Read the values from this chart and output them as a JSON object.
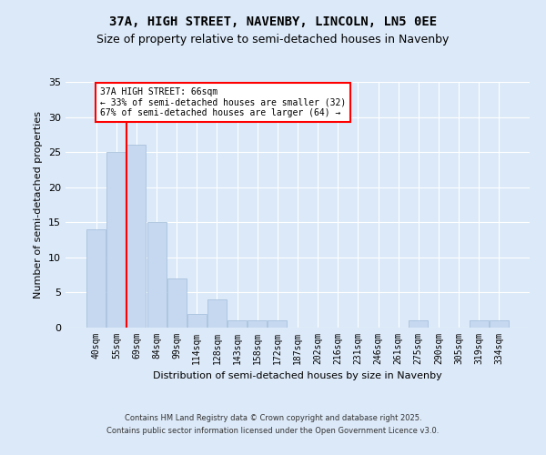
{
  "title": "37A, HIGH STREET, NAVENBY, LINCOLN, LN5 0EE",
  "subtitle": "Size of property relative to semi-detached houses in Navenby",
  "xlabel": "Distribution of semi-detached houses by size in Navenby",
  "ylabel": "Number of semi-detached properties",
  "categories": [
    "40sqm",
    "55sqm",
    "69sqm",
    "84sqm",
    "99sqm",
    "114sqm",
    "128sqm",
    "143sqm",
    "158sqm",
    "172sqm",
    "187sqm",
    "202sqm",
    "216sqm",
    "231sqm",
    "246sqm",
    "261sqm",
    "275sqm",
    "290sqm",
    "305sqm",
    "319sqm",
    "334sqm"
  ],
  "values": [
    14,
    25,
    26,
    15,
    7,
    2,
    4,
    1,
    1,
    1,
    0,
    0,
    0,
    0,
    0,
    0,
    1,
    0,
    0,
    1,
    1
  ],
  "bar_color": "#c5d8f0",
  "bar_edge_color": "#a0bcd8",
  "red_line_x": 1.5,
  "annotation_title": "37A HIGH STREET: 66sqm",
  "annotation_line1": "← 33% of semi-detached houses are smaller (32)",
  "annotation_line2": "67% of semi-detached houses are larger (64) →",
  "ylim": [
    0,
    35
  ],
  "yticks": [
    0,
    5,
    10,
    15,
    20,
    25,
    30,
    35
  ],
  "footer1": "Contains HM Land Registry data © Crown copyright and database right 2025.",
  "footer2": "Contains public sector information licensed under the Open Government Licence v3.0.",
  "bg_color": "#dce9f8",
  "plot_bg_color": "#dce9f8",
  "grid_color": "#ffffff",
  "title_fontsize": 10,
  "subtitle_fontsize": 9,
  "tick_fontsize": 7,
  "ylabel_fontsize": 8,
  "xlabel_fontsize": 8,
  "footer_fontsize": 6,
  "annot_fontsize": 7
}
